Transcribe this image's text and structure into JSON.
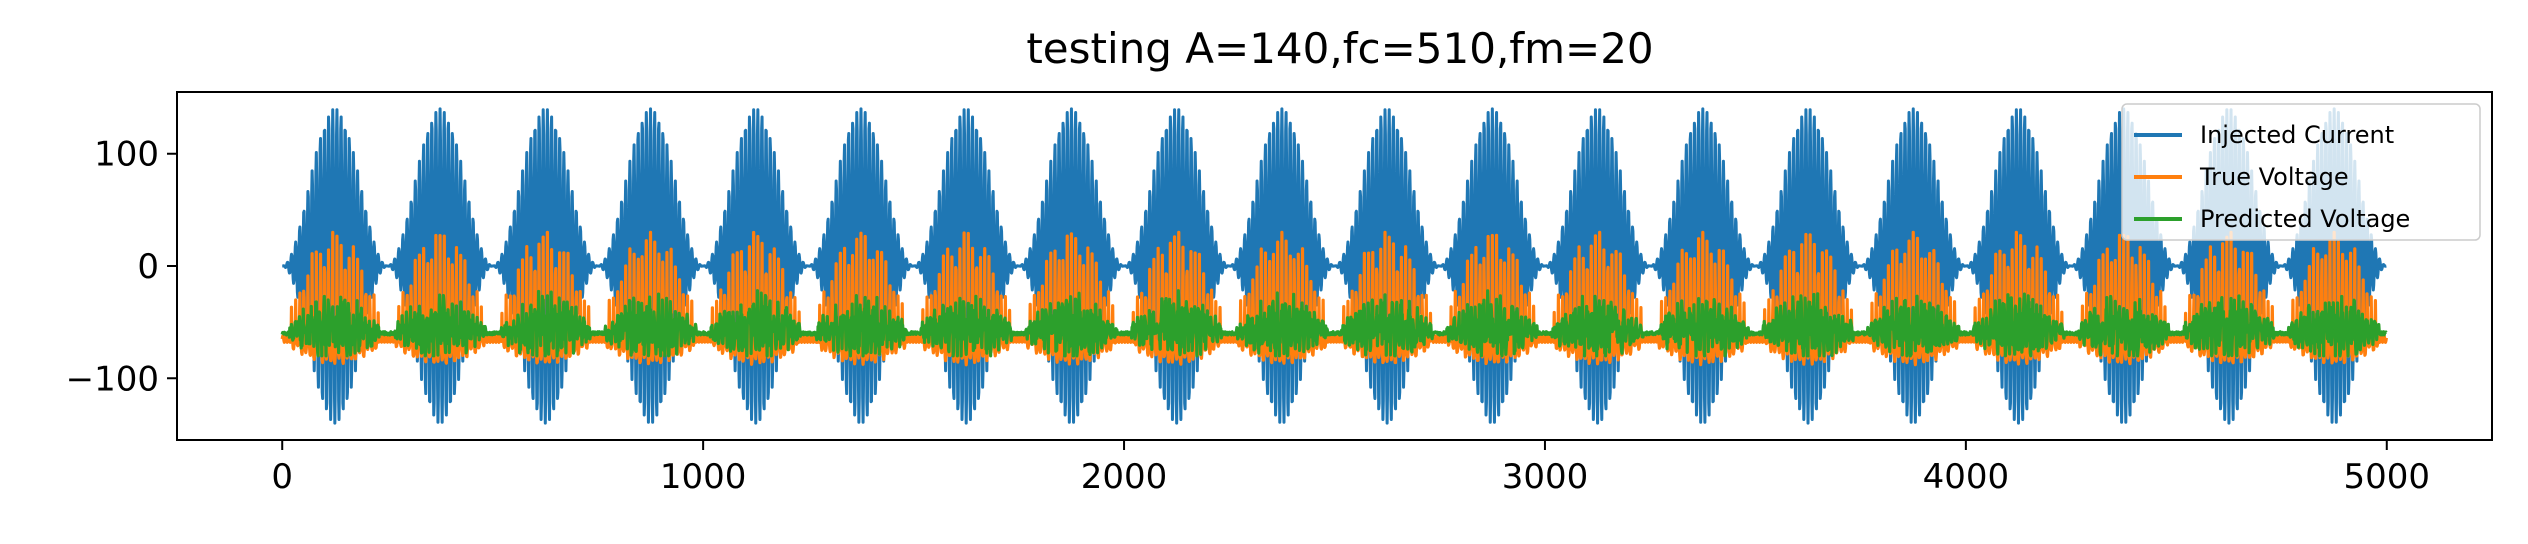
{
  "chart_data": {
    "type": "line",
    "title": "testing A=140,fc=510,fm=20",
    "xlabel": "",
    "ylabel": "",
    "xlim": [
      -250,
      5250
    ],
    "ylim": [
      -155,
      155
    ],
    "xticks": [
      0,
      1000,
      2000,
      3000,
      4000,
      5000
    ],
    "xtick_labels": [
      "0",
      "1000",
      "2000",
      "3000",
      "4000",
      "5000"
    ],
    "yticks": [
      -100,
      0,
      100
    ],
    "ytick_labels": [
      "−100",
      "0",
      "100"
    ],
    "grid": false,
    "legend_position": "upper right",
    "n_samples": 5000,
    "series": [
      {
        "name": "Injected Current",
        "color": "#1f77b4",
        "amplitude": 140,
        "envelope_period_samples": 250,
        "carrier_cycles_per_envelope": 25.5,
        "description_of_values": "AM sinusoid, peaks +140 / -140"
      },
      {
        "name": "True Voltage",
        "color": "#ff7f0e",
        "baseline": -65,
        "max": 30,
        "min": -90
      },
      {
        "name": "Predicted Voltage",
        "color": "#2ca02c",
        "baseline": -60,
        "max": 0,
        "min": -80
      }
    ]
  }
}
